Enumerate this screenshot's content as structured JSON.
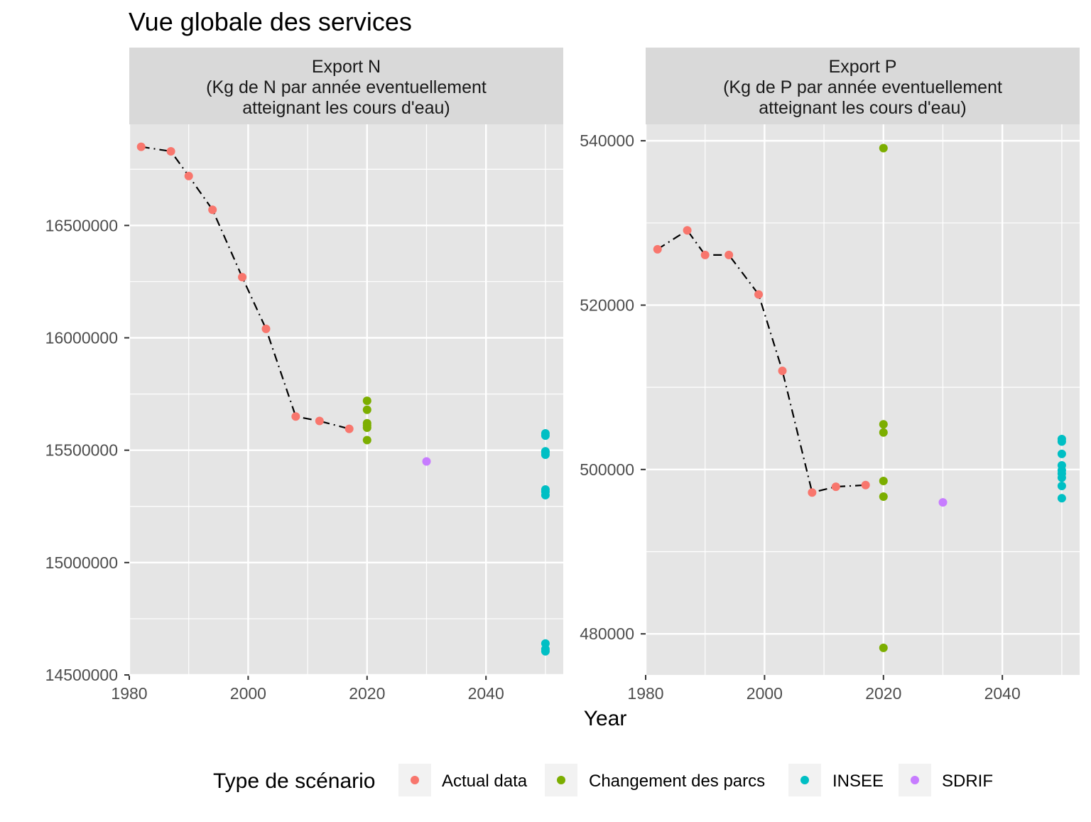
{
  "title": "Vue globale des services",
  "xlabel": "Year",
  "colors": {
    "Actual data": "#F8766D",
    "Changement des parcs": "#7CAE00",
    "INSEE": "#00BFC4",
    "SDRIF": "#C77CFF",
    "panel_bg": "#E5E5E5",
    "strip_bg": "#D9D9D9",
    "grid": "#FFFFFF",
    "line": "#000000"
  },
  "legend": {
    "title": "Type de scénario",
    "items": [
      "Actual data",
      "Changement des parcs",
      "INSEE",
      "SDRIF"
    ]
  },
  "chart_data": [
    {
      "type": "scatter",
      "facet_lines": [
        "Export N",
        "(Kg de N par année eventuellement",
        "atteignant les cours d'eau)"
      ],
      "xlim": [
        1980,
        2053
      ],
      "ylim": [
        14500000,
        16950000
      ],
      "x_ticks": [
        1980,
        2000,
        2020,
        2040
      ],
      "y_ticks": [
        14500000,
        15000000,
        15500000,
        16000000,
        16500000
      ],
      "x_tick_labels": [
        "1980",
        "2000",
        "2020",
        "2040"
      ],
      "y_tick_labels": [
        "14500000",
        "15000000",
        "15500000",
        "16000000",
        "16500000"
      ],
      "line_series": "Actual data",
      "series": [
        {
          "name": "Actual data",
          "points": [
            [
              1982,
              16850000
            ],
            [
              1987,
              16830000
            ],
            [
              1990,
              16720000
            ],
            [
              1994,
              16570000
            ],
            [
              1999,
              16270000
            ],
            [
              2003,
              16040000
            ],
            [
              2008,
              15650000
            ],
            [
              2012,
              15630000
            ],
            [
              2017,
              15595000
            ]
          ]
        },
        {
          "name": "Changement des parcs",
          "points": [
            [
              2020,
              15720000
            ],
            [
              2020,
              15680000
            ],
            [
              2020,
              15620000
            ],
            [
              2020,
              15610000
            ],
            [
              2020,
              15600000
            ],
            [
              2020,
              15545000
            ]
          ]
        },
        {
          "name": "INSEE",
          "points": [
            [
              2050,
              15575000
            ],
            [
              2050,
              15565000
            ],
            [
              2050,
              15495000
            ],
            [
              2050,
              15490000
            ],
            [
              2050,
              15480000
            ],
            [
              2050,
              15325000
            ],
            [
              2050,
              15315000
            ],
            [
              2050,
              15300000
            ],
            [
              2050,
              14640000
            ],
            [
              2050,
              14615000
            ],
            [
              2050,
              14605000
            ]
          ]
        },
        {
          "name": "SDRIF",
          "points": [
            [
              2030,
              15450000
            ]
          ]
        }
      ]
    },
    {
      "type": "scatter",
      "facet_lines": [
        "Export P",
        "(Kg de P par année eventuellement",
        "atteignant les cours d'eau)"
      ],
      "xlim": [
        1980,
        2053
      ],
      "ylim": [
        475000,
        542000
      ],
      "x_ticks": [
        1980,
        2000,
        2020,
        2040
      ],
      "y_ticks": [
        480000,
        500000,
        520000,
        540000
      ],
      "x_tick_labels": [
        "1980",
        "2000",
        "2020",
        "2040"
      ],
      "y_tick_labels": [
        "480000",
        "500000",
        "520000",
        "540000"
      ],
      "line_series": "Actual data",
      "series": [
        {
          "name": "Actual data",
          "points": [
            [
              1982,
              526800
            ],
            [
              1987,
              529100
            ],
            [
              1990,
              526100
            ],
            [
              1994,
              526100
            ],
            [
              1999,
              521300
            ],
            [
              2003,
              512000
            ],
            [
              2008,
              497200
            ],
            [
              2012,
              497900
            ],
            [
              2017,
              498100
            ]
          ]
        },
        {
          "name": "Changement des parcs",
          "points": [
            [
              2020,
              539100
            ],
            [
              2020,
              505500
            ],
            [
              2020,
              504500
            ],
            [
              2020,
              498600
            ],
            [
              2020,
              496700
            ],
            [
              2020,
              478300
            ]
          ]
        },
        {
          "name": "INSEE",
          "points": [
            [
              2050,
              503700
            ],
            [
              2050,
              503400
            ],
            [
              2050,
              501900
            ],
            [
              2050,
              500500
            ],
            [
              2050,
              499900
            ],
            [
              2050,
              499500
            ],
            [
              2050,
              499000
            ],
            [
              2050,
              498000
            ],
            [
              2050,
              496500
            ]
          ]
        },
        {
          "name": "SDRIF",
          "points": [
            [
              2030,
              496000
            ]
          ]
        }
      ]
    }
  ]
}
